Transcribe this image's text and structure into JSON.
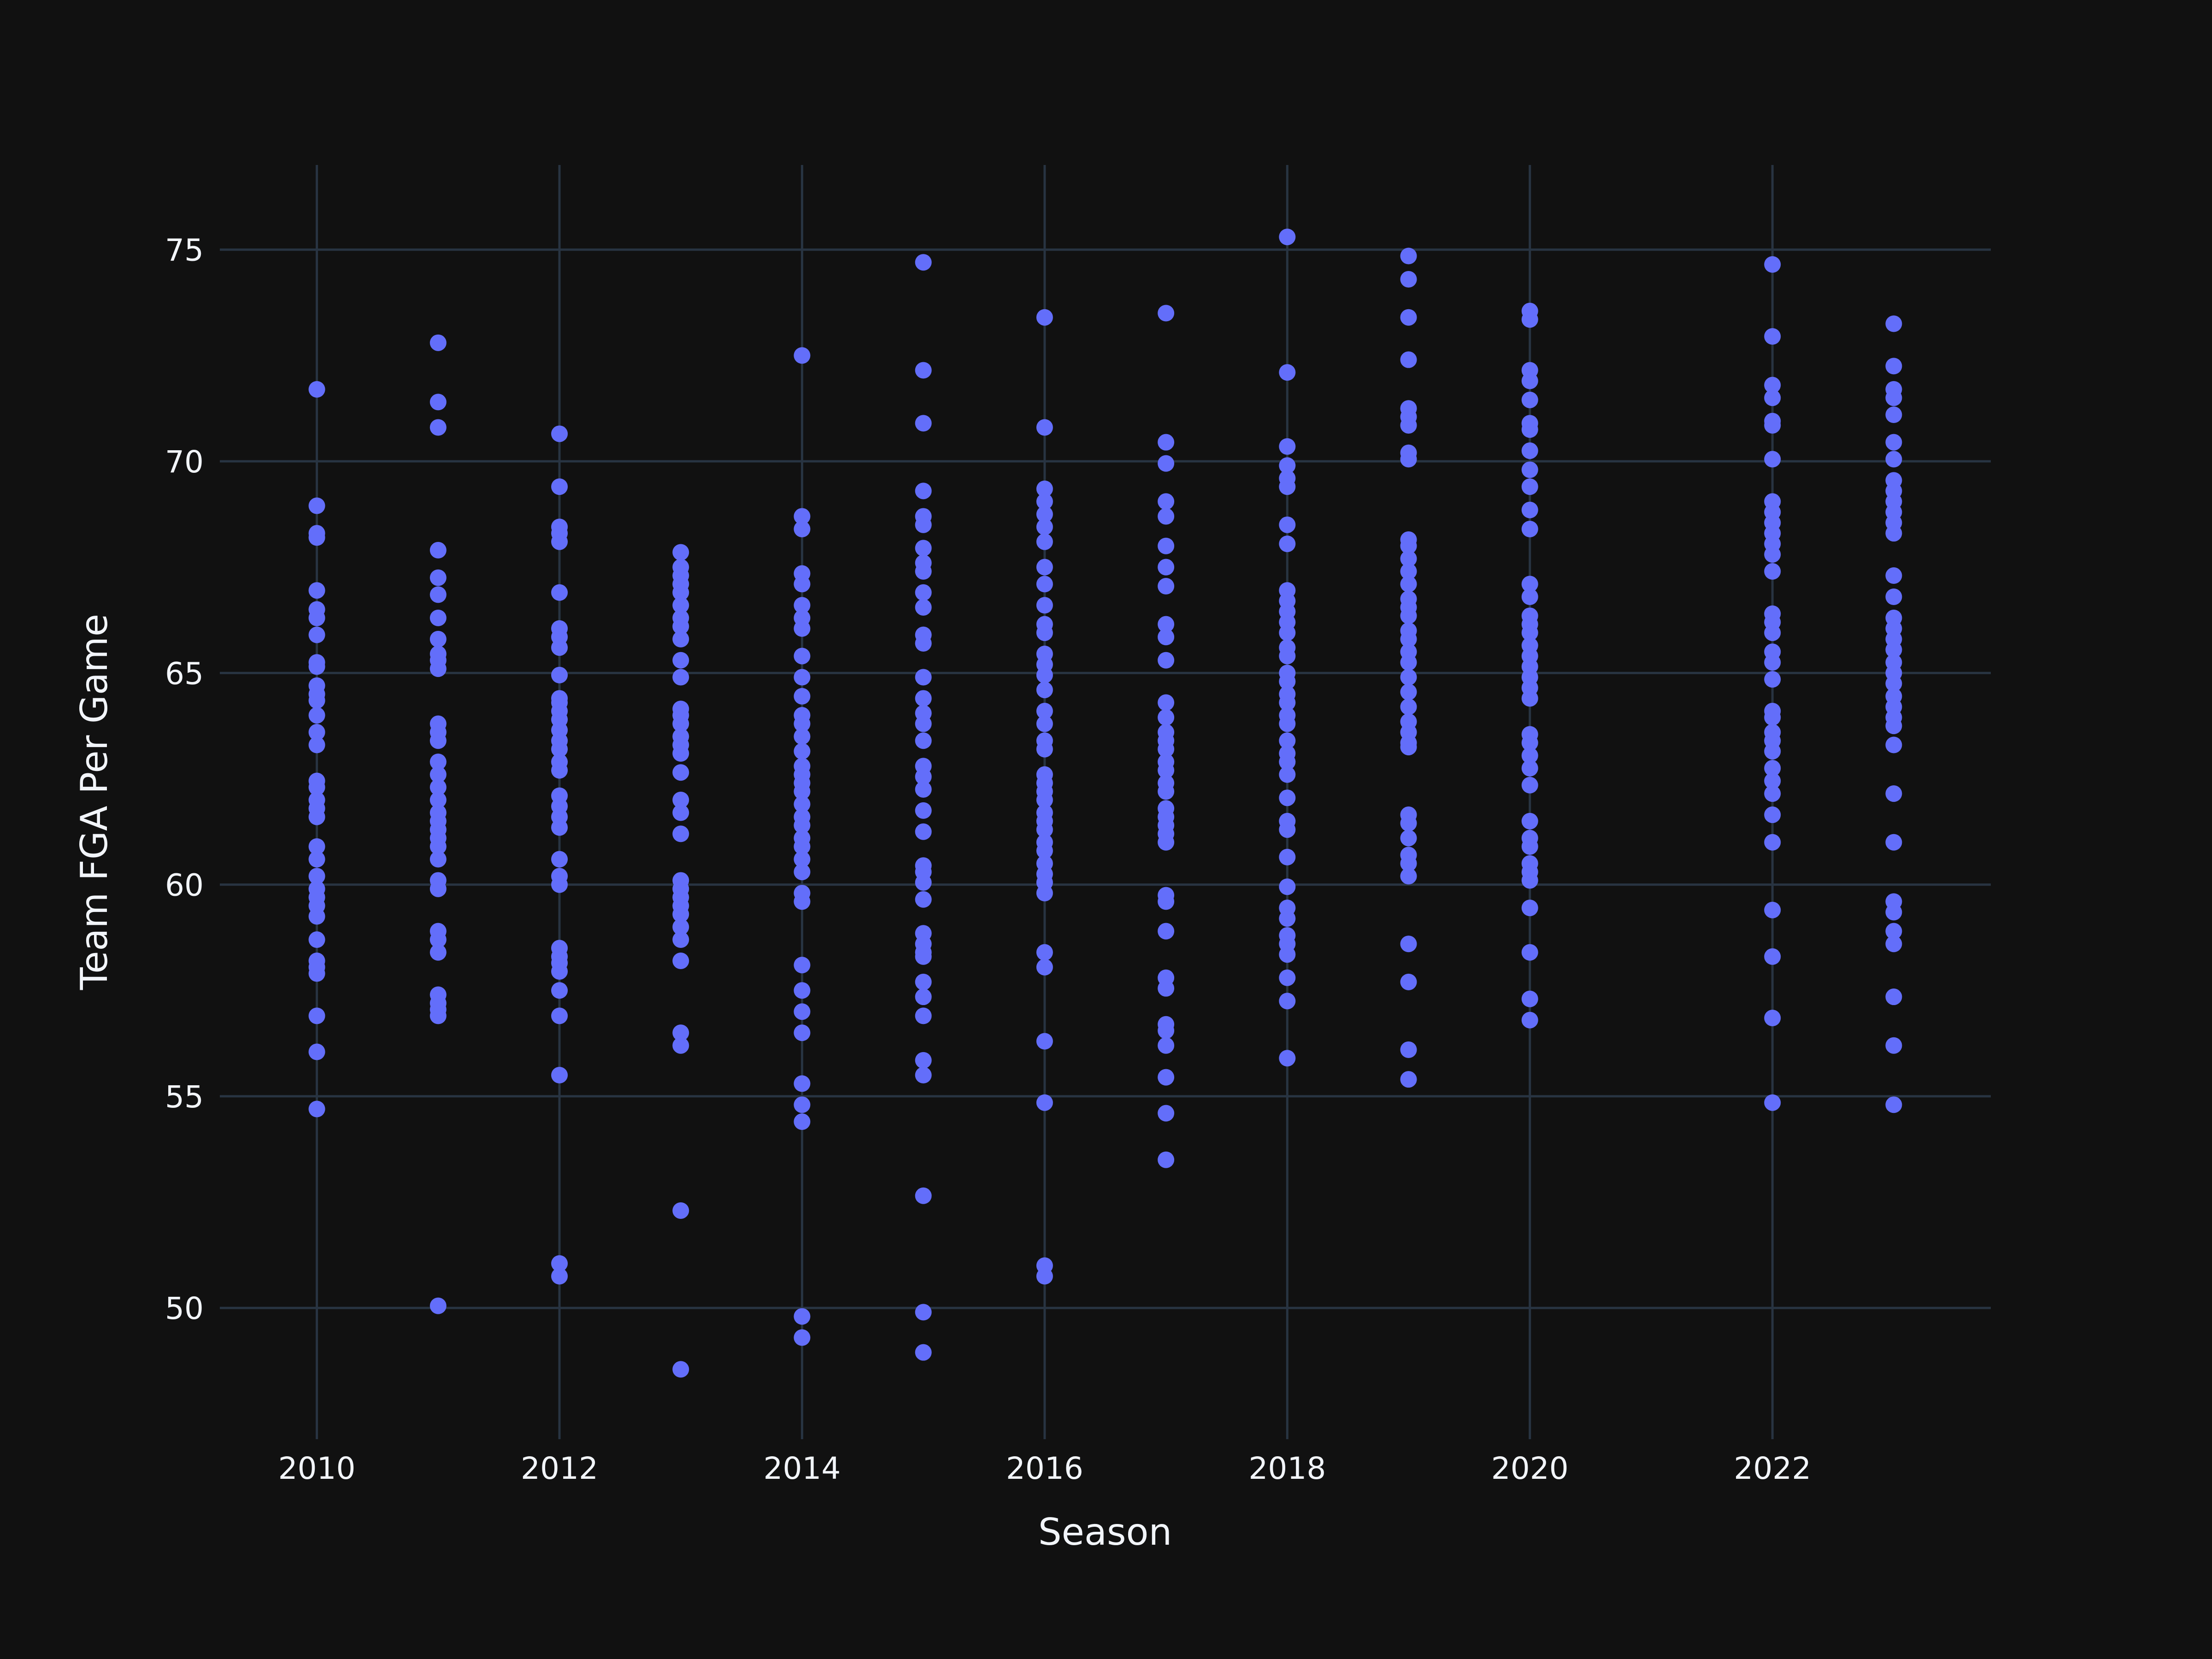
{
  "chart_data": {
    "type": "scatter",
    "title": "",
    "xlabel": "Season",
    "ylabel": "Team FGA Per Game",
    "xlim": [
      2009.2,
      2023.8
    ],
    "ylim": [
      46.9,
      77.0
    ],
    "x_ticks": [
      2010,
      2012,
      2014,
      2016,
      2018,
      2020,
      2022
    ],
    "y_ticks": [
      50,
      55,
      60,
      65,
      70,
      75
    ],
    "grid": true,
    "colors": {
      "background": "#111111",
      "grid": "#283442",
      "marker": "#636efa",
      "text": "#f2f5fa"
    },
    "series": [
      {
        "points": [
          {
            "season": 2010,
            "values": [
              71.7,
              68.95,
              68.3,
              68.2,
              66.95,
              66.5,
              66.3,
              65.9,
              65.25,
              65.15,
              64.7,
              64.5,
              64.35,
              64.0,
              63.6,
              63.3,
              62.45,
              62.3,
              62.0,
              61.8,
              61.6,
              60.9,
              60.6,
              60.2,
              59.9,
              59.7,
              59.5,
              59.25,
              58.7,
              58.2,
              58.05,
              57.9,
              56.9,
              56.05,
              54.7
            ]
          },
          {
            "season": 2011,
            "values": [
              72.8,
              71.4,
              70.8,
              67.9,
              67.25,
              66.85,
              66.3,
              65.8,
              65.45,
              65.3,
              65.1,
              63.8,
              63.6,
              63.4,
              62.9,
              62.6,
              62.3,
              62.0,
              61.7,
              61.5,
              61.3,
              61.1,
              60.9,
              60.6,
              60.1,
              59.9,
              58.9,
              58.7,
              58.4,
              57.4,
              57.2,
              57.05,
              56.9,
              50.05
            ]
          },
          {
            "season": 2012,
            "values": [
              70.65,
              69.4,
              68.45,
              68.3,
              68.1,
              66.9,
              66.05,
              65.85,
              65.6,
              64.95,
              64.4,
              64.3,
              64.1,
              63.9,
              63.65,
              63.4,
              63.2,
              62.9,
              62.7,
              62.1,
              61.85,
              61.6,
              61.35,
              60.6,
              60.2,
              60.0,
              58.5,
              58.3,
              58.15,
              57.95,
              57.5,
              56.9,
              55.5,
              51.05,
              50.75
            ]
          },
          {
            "season": 2013,
            "values": [
              67.85,
              67.5,
              67.3,
              67.1,
              66.9,
              66.6,
              66.3,
              66.1,
              65.8,
              65.3,
              64.9,
              64.15,
              64.0,
              63.8,
              63.5,
              63.3,
              63.1,
              62.65,
              62.0,
              61.7,
              61.2,
              60.1,
              59.9,
              59.7,
              59.5,
              59.3,
              59.0,
              58.7,
              58.2,
              56.5,
              56.2,
              52.3,
              48.55
            ]
          },
          {
            "season": 2014,
            "values": [
              72.5,
              68.7,
              68.4,
              67.35,
              67.1,
              66.6,
              66.3,
              66.05,
              65.4,
              64.9,
              64.45,
              64.0,
              63.8,
              63.5,
              63.15,
              62.8,
              62.6,
              62.4,
              62.2,
              61.9,
              61.6,
              61.4,
              61.1,
              60.9,
              60.6,
              60.3,
              59.8,
              59.6,
              58.1,
              57.5,
              57.0,
              56.5,
              55.3,
              54.8,
              54.4,
              49.8,
              49.3
            ]
          },
          {
            "season": 2015,
            "values": [
              74.7,
              72.15,
              70.9,
              69.3,
              68.7,
              68.5,
              67.95,
              67.6,
              67.4,
              66.9,
              66.55,
              65.9,
              65.7,
              64.9,
              64.4,
              64.05,
              63.8,
              63.4,
              62.8,
              62.55,
              62.25,
              61.75,
              61.25,
              60.45,
              60.3,
              60.05,
              59.65,
              58.85,
              58.6,
              58.4,
              58.3,
              57.7,
              57.35,
              56.9,
              55.85,
              55.5,
              52.65,
              49.9,
              48.95
            ]
          },
          {
            "season": 2016,
            "values": [
              73.4,
              70.8,
              69.35,
              69.05,
              68.75,
              68.45,
              68.1,
              67.5,
              67.1,
              66.6,
              66.15,
              65.95,
              65.45,
              65.2,
              64.95,
              64.6,
              64.1,
              63.8,
              63.4,
              63.2,
              62.6,
              62.4,
              62.2,
              62.0,
              61.7,
              61.5,
              61.3,
              61.0,
              60.8,
              60.5,
              60.25,
              60.05,
              59.8,
              58.4,
              58.05,
              56.3,
              54.85,
              51.0,
              50.75
            ]
          },
          {
            "season": 2017,
            "values": [
              73.5,
              70.45,
              69.95,
              69.05,
              68.7,
              68.0,
              67.5,
              67.05,
              66.15,
              65.85,
              65.3,
              64.3,
              63.95,
              63.6,
              63.4,
              63.2,
              62.9,
              62.7,
              62.4,
              62.2,
              61.8,
              61.6,
              61.4,
              61.2,
              61.0,
              59.75,
              59.6,
              58.9,
              57.8,
              57.55,
              56.7,
              56.55,
              56.2,
              55.45,
              54.6,
              53.5
            ]
          },
          {
            "season": 2018,
            "values": [
              75.3,
              72.1,
              70.35,
              69.9,
              69.6,
              69.4,
              68.5,
              68.05,
              66.95,
              66.7,
              66.45,
              66.2,
              65.95,
              65.6,
              65.4,
              65.0,
              64.8,
              64.5,
              64.3,
              64.0,
              63.8,
              63.4,
              63.1,
              62.9,
              62.6,
              62.05,
              61.5,
              61.3,
              60.65,
              59.95,
              59.45,
              59.2,
              58.8,
              58.6,
              58.35,
              57.8,
              57.25,
              55.9
            ]
          },
          {
            "season": 2019,
            "values": [
              74.85,
              74.3,
              73.4,
              72.4,
              71.25,
              71.05,
              70.85,
              70.2,
              70.05,
              68.15,
              68.0,
              67.7,
              67.4,
              67.1,
              66.75,
              66.55,
              66.35,
              66.0,
              65.8,
              65.5,
              65.25,
              64.9,
              64.55,
              64.2,
              63.85,
              63.6,
              63.35,
              63.25,
              61.65,
              61.45,
              61.1,
              60.7,
              60.5,
              60.2,
              58.6,
              57.7,
              56.1,
              55.4
            ]
          },
          {
            "season": 2020,
            "values": [
              73.55,
              73.35,
              72.15,
              71.9,
              71.45,
              70.9,
              70.75,
              70.25,
              69.8,
              69.4,
              68.85,
              68.4,
              67.1,
              66.8,
              66.35,
              66.15,
              65.95,
              65.65,
              65.4,
              65.15,
              64.9,
              64.65,
              64.4,
              63.55,
              63.35,
              63.05,
              62.75,
              62.35,
              61.5,
              61.1,
              60.9,
              60.5,
              60.3,
              60.1,
              59.45,
              58.4,
              57.3,
              56.8
            ]
          },
          {
            "season": 2022,
            "values": [
              74.65,
              72.95,
              71.8,
              71.5,
              70.95,
              70.85,
              70.05,
              69.05,
              68.8,
              68.55,
              68.3,
              68.05,
              67.8,
              67.4,
              66.4,
              66.2,
              65.95,
              65.5,
              65.25,
              64.85,
              64.1,
              63.95,
              63.6,
              63.4,
              63.15,
              62.75,
              62.45,
              62.15,
              61.65,
              61.0,
              59.4,
              58.3,
              56.85,
              54.85
            ]
          },
          {
            "season": 2023,
            "values": [
              73.25,
              72.25,
              71.7,
              71.5,
              71.1,
              70.45,
              70.05,
              69.55,
              69.3,
              69.05,
              68.8,
              68.55,
              68.3,
              67.3,
              66.8,
              66.3,
              66.05,
              65.8,
              65.55,
              65.25,
              65.0,
              64.75,
              64.45,
              64.2,
              63.95,
              63.75,
              63.3,
              62.15,
              61.0,
              59.6,
              59.35,
              58.9,
              58.6,
              57.35,
              56.2,
              54.8
            ]
          }
        ]
      }
    ]
  }
}
